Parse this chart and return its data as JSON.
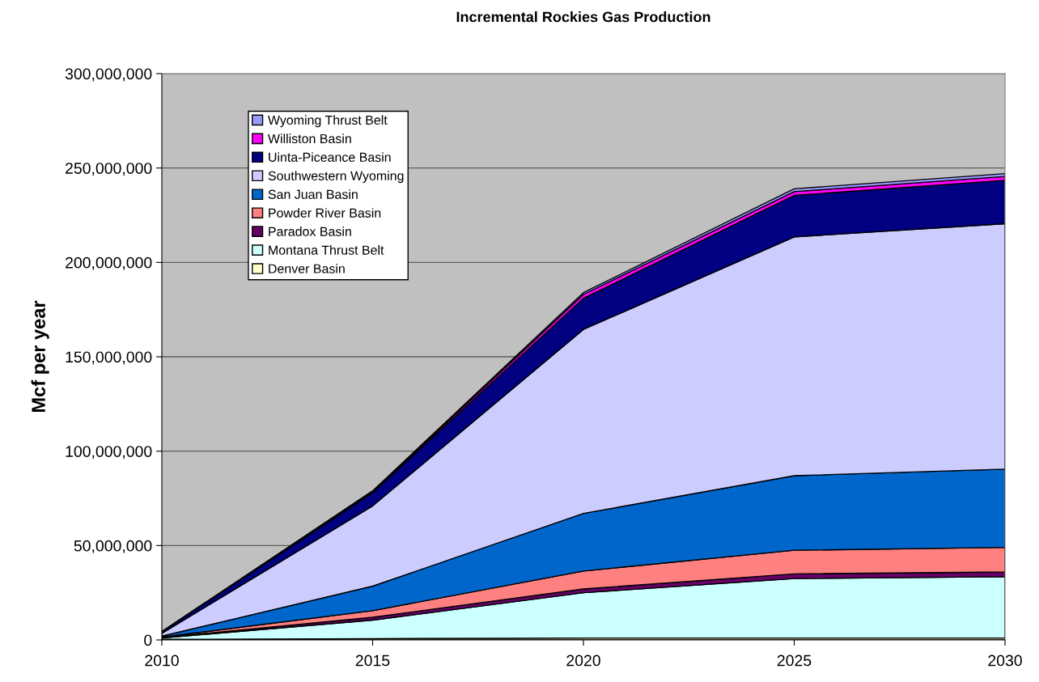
{
  "chart_data": {
    "type": "area",
    "stacked": true,
    "title": "Incremental Rockies Gas Production",
    "ylabel": "Mcf per year",
    "x": [
      2010,
      2015,
      2020,
      2025,
      2030
    ],
    "xlim": [
      2010,
      2030
    ],
    "xticks": [
      2010,
      2015,
      2020,
      2025,
      2030
    ],
    "ylim": [
      0,
      300000000
    ],
    "yticks": [
      {
        "value": 0,
        "label": "0"
      },
      {
        "value": 50000000,
        "label": "50,000,000"
      },
      {
        "value": 100000000,
        "label": "100,000,000"
      },
      {
        "value": 150000000,
        "label": "150,000,000"
      },
      {
        "value": 200000000,
        "label": "200,000,000"
      },
      {
        "value": 250000000,
        "label": "250,000,000"
      },
      {
        "value": 300000000,
        "label": "300,000,000"
      }
    ],
    "grid": "y",
    "legend": "top left",
    "series": [
      {
        "name": "Denver Basin",
        "color": "#ffffcc",
        "values": [
          300000,
          700000,
          1000000,
          1000000,
          1000000
        ]
      },
      {
        "name": "Montana Thrust Belt",
        "color": "#ccffff",
        "values": [
          700000,
          9800000,
          24000000,
          31500000,
          32500000
        ]
      },
      {
        "name": "Paradox Basin",
        "color": "#660066",
        "values": [
          200000,
          1500000,
          2000000,
          2500000,
          2500000
        ]
      },
      {
        "name": "Powder River Basin",
        "color": "#ff8080",
        "values": [
          300000,
          3500000,
          9500000,
          12500000,
          13000000
        ]
      },
      {
        "name": "San Juan Basin",
        "color": "#0066cc",
        "values": [
          500000,
          13000000,
          30500000,
          39500000,
          41500000
        ]
      },
      {
        "name": "Southwestern Wyoming",
        "color": "#ccccff",
        "values": [
          1500000,
          42500000,
          97500000,
          126500000,
          130000000
        ]
      },
      {
        "name": "Uinta-Piceance Basin",
        "color": "#000080",
        "values": [
          800000,
          7000000,
          16500000,
          22000000,
          23000000
        ]
      },
      {
        "name": "Williston Basin",
        "color": "#ff00ff",
        "values": [
          100000,
          500000,
          2000000,
          2000000,
          2000000
        ]
      },
      {
        "name": "Wyoming Thrust Belt",
        "color": "#9999ff",
        "values": [
          100000,
          500000,
          1000000,
          1500000,
          1500000
        ]
      }
    ]
  }
}
